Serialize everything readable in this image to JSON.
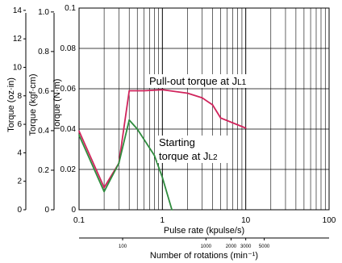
{
  "chart_data": {
    "type": "line",
    "x_scale": "log",
    "xlim": [
      0.1,
      100
    ],
    "ylim": [
      0,
      0.1
    ],
    "xlabel": "Pulse rate (kpulse/s)",
    "xlabel2": "Number of rotations (min⁻¹)",
    "ylabel": "Torque (N·m)",
    "ylabel_kgf": "Torque (kgf·cm)",
    "ylabel_ozin": "Torque (oz·in)",
    "grid": true,
    "x_ticks": [
      "0.1",
      "1",
      "10",
      "100"
    ],
    "y_ticks": [
      "0",
      "0.02",
      "0.04",
      "0.06",
      "0.08",
      "0.1"
    ],
    "kgf_ticks": [
      "0",
      "0.2",
      "0.4",
      "0.6",
      "0.8",
      "1.0"
    ],
    "ozin_ticks": [
      "0",
      "2",
      "4",
      "6",
      "8",
      "10",
      "12",
      "14"
    ],
    "rpm_ticks": [
      "100",
      "1000",
      "2000",
      "3000",
      "5000"
    ],
    "series": [
      {
        "name": "Pull-out torque at JL1",
        "color": "#d0245c",
        "x": [
          0.1,
          0.2,
          0.3,
          0.4,
          0.6,
          1,
          2,
          3,
          4,
          5,
          10
        ],
        "y": [
          0.039,
          0.011,
          0.023,
          0.059,
          0.059,
          0.0595,
          0.0578,
          0.0555,
          0.052,
          0.0455,
          0.0405
        ]
      },
      {
        "name": "Starting torque at JL2",
        "color": "#2e8b3d",
        "x": [
          0.1,
          0.2,
          0.3,
          0.4,
          0.5,
          0.8,
          1,
          1.3
        ],
        "y": [
          0.037,
          0.009,
          0.023,
          0.0445,
          0.04,
          0.027,
          0.016,
          0
        ]
      }
    ],
    "annotations": [
      {
        "prefix": "Pull-out torque at J",
        "sub": "L1"
      },
      {
        "line1": "Starting",
        "prefix": "torque at J",
        "sub": "L2"
      }
    ]
  }
}
